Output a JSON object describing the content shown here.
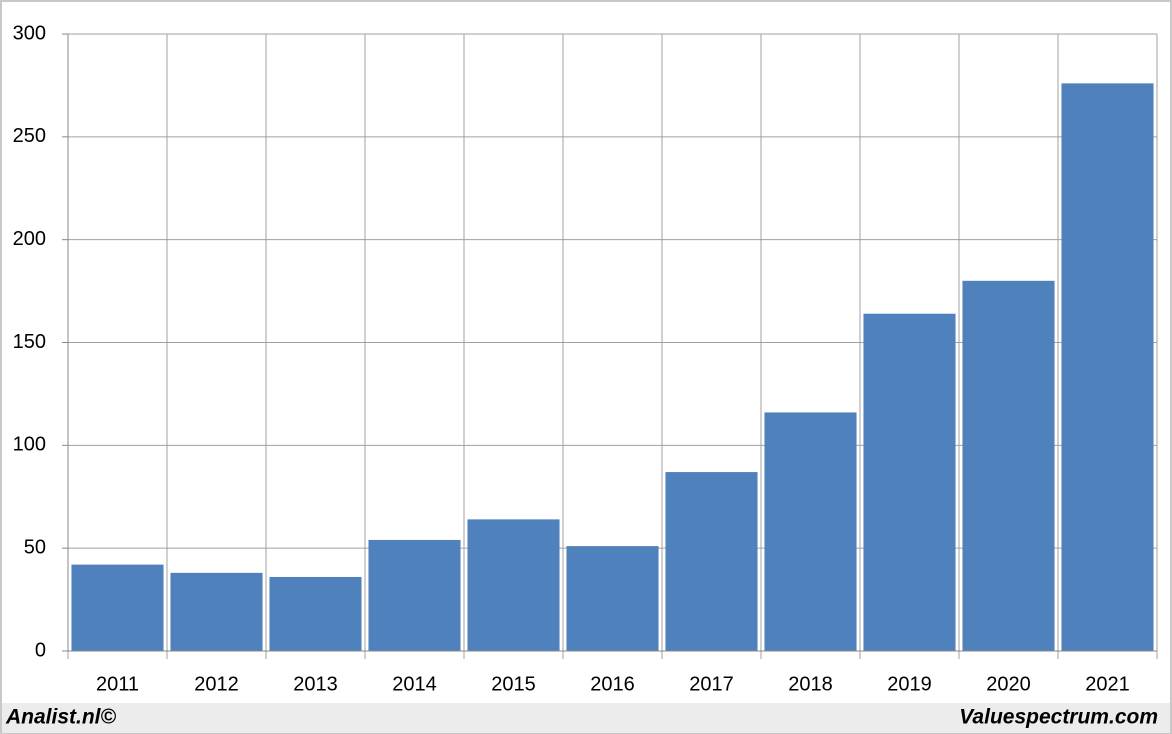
{
  "chart_data": {
    "type": "bar",
    "categories": [
      "2011",
      "2012",
      "2013",
      "2014",
      "2015",
      "2016",
      "2017",
      "2018",
      "2019",
      "2020",
      "2021"
    ],
    "values": [
      42,
      38,
      36,
      54,
      64,
      51,
      87,
      116,
      164,
      180,
      276
    ],
    "color": "#4f81bd",
    "ylim": [
      0,
      300
    ],
    "yticks": [
      0,
      50,
      100,
      150,
      200,
      250,
      300
    ],
    "grid": true,
    "footer_left": "Analist.nl©",
    "footer_right": "Valuespectrum.com"
  }
}
